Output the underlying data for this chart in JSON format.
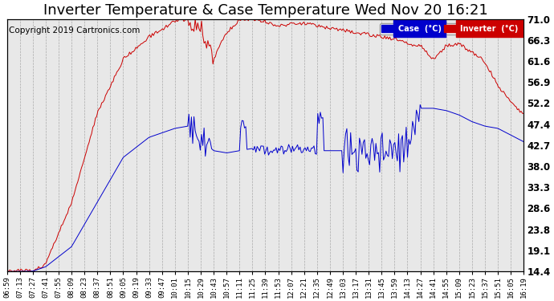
{
  "title": "Inverter Temperature & Case Temperature Wed Nov 20 16:21",
  "copyright": "Copyright 2019 Cartronics.com",
  "ylabel_right_ticks": [
    14.4,
    19.1,
    23.8,
    28.6,
    33.3,
    38.0,
    42.7,
    47.4,
    52.2,
    56.9,
    61.6,
    66.3,
    71.0
  ],
  "ylim": [
    14.4,
    71.0
  ],
  "legend_case_label": "Case  (°C)",
  "legend_inverter_label": "Inverter  (°C)",
  "case_color": "#0000CC",
  "inverter_color": "#CC0000",
  "bg_color": "#E8E8E8",
  "title_fontsize": 13,
  "copyright_fontsize": 7.5,
  "xtick_fontsize": 6.5,
  "ytick_fontsize": 8.5,
  "x_labels": [
    "06:59",
    "07:13",
    "07:27",
    "07:41",
    "07:55",
    "08:09",
    "08:23",
    "08:37",
    "08:51",
    "09:05",
    "09:19",
    "09:33",
    "09:47",
    "10:01",
    "10:15",
    "10:29",
    "10:43",
    "10:57",
    "11:11",
    "11:25",
    "11:39",
    "11:53",
    "12:07",
    "12:21",
    "12:35",
    "12:49",
    "13:03",
    "13:17",
    "13:31",
    "13:45",
    "13:59",
    "14:13",
    "14:27",
    "14:41",
    "14:55",
    "15:09",
    "15:23",
    "15:37",
    "15:51",
    "16:05",
    "16:19"
  ]
}
